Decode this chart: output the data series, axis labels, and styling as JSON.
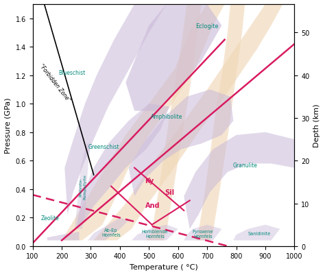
{
  "xlim": [
    100,
    1000
  ],
  "ylim": [
    0,
    1.7
  ],
  "xlabel": "Temperature ( °C)",
  "ylabel": "Pressure (GPa)",
  "ylabel2": "Depth (km)",
  "figsize": [
    4.74,
    4.02
  ],
  "dpi": 100,
  "facies_color": "#c9b8d8",
  "band_color": "#f0d8b8",
  "pink_color": "#d81b60",
  "teal_color": "#00897b",
  "depth_ticks_gpa": [
    0,
    0.3,
    0.6,
    0.9,
    1.2,
    1.5
  ],
  "depth_ticks_km": [
    0,
    10,
    20,
    30,
    40,
    50
  ]
}
